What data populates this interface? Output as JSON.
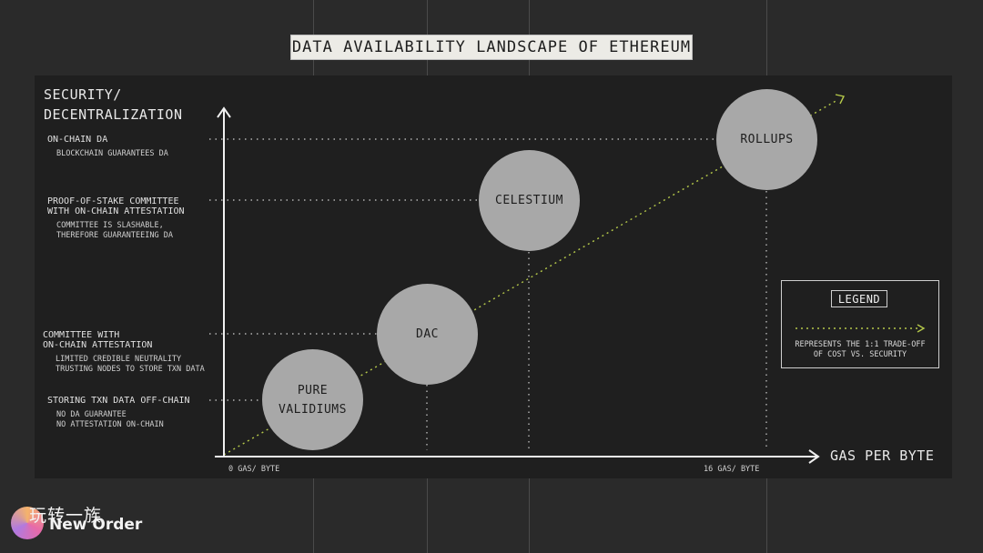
{
  "title": "DATA AVAILABILITY LANDSCAPE OF ETHEREUM",
  "y_axis_label_line1": "SECURITY/",
  "y_axis_label_line2": "DECENTRALIZATION",
  "x_axis_label": "GAS PER BYTE",
  "x_ticks": {
    "start": "0 GAS/ BYTE",
    "end": "16 GAS/ BYTE"
  },
  "levels": [
    {
      "title": [
        "ON-CHAIN DA"
      ],
      "desc": [
        "BLOCKCHAIN GUARANTEES DA"
      ]
    },
    {
      "title": [
        "PROOF-OF-STAKE COMMITTEE",
        "WITH ON-CHAIN ATTESTATION"
      ],
      "desc": [
        "COMMITTEE IS SLASHABLE,",
        "THEREFORE GUARANTEEING DA"
      ]
    },
    {
      "title": [
        "COMMITTEE WITH",
        "ON-CHAIN ATTESTATION"
      ],
      "desc": [
        "LIMITED CREDIBLE NEUTRALITY",
        "TRUSTING NODES TO STORE TXN DATA"
      ]
    },
    {
      "title": [
        "STORING TXN DATA OFF-CHAIN"
      ],
      "desc": [
        "NO DA GUARANTEE",
        "NO ATTESTATION ON-CHAIN"
      ]
    }
  ],
  "solutions": [
    {
      "lines": [
        "PURE",
        "VALIDIUMS"
      ]
    },
    {
      "lines": [
        "DAC"
      ]
    },
    {
      "lines": [
        "CELESTIUM"
      ]
    },
    {
      "lines": [
        "ROLLUPS"
      ]
    }
  ],
  "legend": {
    "title": "LEGEND",
    "desc_line1": "REPRESENTS THE 1:1 TRADE-OFF",
    "desc_line2": "OF COST VS. SECURITY"
  },
  "watermark": {
    "cn": "玩转一族",
    "en": "New Order"
  },
  "colors": {
    "background": "#2a2a2a",
    "panel": "#1f1f1f",
    "circle": "#a8a8a8",
    "tradeoff_line": "#b5c94a",
    "title_bg": "#ecebe6"
  }
}
